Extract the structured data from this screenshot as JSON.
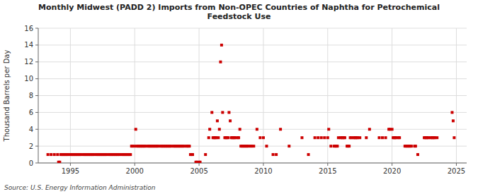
{
  "chart_data": {
    "type": "scatter",
    "title": "Monthly Midwest (PADD 2) Imports from Non-OPEC Countries of Naphtha for Petrochemical\nFeedstock Use",
    "y_label": "Thousand Barrels per Day",
    "annotations": [
      "Source: U.S. Energy Information Administration"
    ],
    "color": "#cc0000",
    "marker": "square",
    "grid": true,
    "xlim": [
      1992.5,
      2025.8
    ],
    "xticks": [
      1995,
      2000,
      2005,
      2010,
      2015,
      2020,
      2025
    ],
    "ylim": [
      0,
      16
    ],
    "yticks": [
      0,
      2,
      4,
      6,
      8,
      10,
      12,
      14,
      16
    ],
    "x": [
      1993.25,
      1993.5,
      1993.75,
      1994.0,
      1994.08,
      1994.17,
      1994.25,
      1994.33,
      1994.42,
      1994.5,
      1994.58,
      1994.67,
      1994.75,
      1994.83,
      1995.0,
      1995.08,
      1995.17,
      1995.25,
      1995.33,
      1995.42,
      1995.5,
      1995.58,
      1995.67,
      1995.75,
      1995.83,
      1996.0,
      1996.08,
      1996.17,
      1996.25,
      1996.33,
      1996.42,
      1996.5,
      1996.58,
      1996.67,
      1996.75,
      1996.83,
      1997.0,
      1997.08,
      1997.17,
      1997.25,
      1997.33,
      1997.42,
      1997.5,
      1997.58,
      1997.67,
      1997.75,
      1997.83,
      1998.0,
      1998.08,
      1998.17,
      1998.25,
      1998.33,
      1998.42,
      1998.5,
      1998.58,
      1998.67,
      1998.75,
      1998.83,
      1999.0,
      1999.08,
      1999.17,
      1999.25,
      1999.33,
      1999.42,
      1999.5,
      1999.58,
      1999.67,
      1999.75,
      1999.83,
      2000.0,
      2000.08,
      2000.17,
      2000.25,
      2000.33,
      2000.42,
      2000.5,
      2000.58,
      2000.67,
      2000.75,
      2000.83,
      2001.0,
      2001.08,
      2001.17,
      2001.25,
      2001.33,
      2001.42,
      2001.5,
      2001.58,
      2001.67,
      2001.75,
      2001.83,
      2002.0,
      2002.08,
      2002.17,
      2002.25,
      2002.33,
      2002.42,
      2002.5,
      2002.58,
      2002.67,
      2002.75,
      2002.83,
      2003.0,
      2003.08,
      2003.17,
      2003.25,
      2003.33,
      2003.42,
      2003.5,
      2003.58,
      2003.67,
      2003.75,
      2003.83,
      2004.0,
      2004.08,
      2004.17,
      2004.25,
      2004.33,
      2004.42,
      2004.5,
      2004.75,
      2004.83,
      2005.0,
      2005.08,
      2005.5,
      2005.75,
      2005.83,
      2006.0,
      2006.08,
      2006.17,
      2006.25,
      2006.33,
      2006.42,
      2006.5,
      2006.58,
      2006.67,
      2006.75,
      2006.83,
      2007.0,
      2007.08,
      2007.17,
      2007.25,
      2007.33,
      2007.42,
      2007.5,
      2007.58,
      2007.67,
      2007.75,
      2007.83,
      2008.0,
      2008.08,
      2008.17,
      2008.25,
      2008.33,
      2008.42,
      2008.5,
      2008.58,
      2008.67,
      2008.75,
      2008.83,
      2009.0,
      2009.08,
      2009.25,
      2009.5,
      2009.75,
      2010.0,
      2010.25,
      2010.75,
      2011.0,
      2011.33,
      2012.0,
      2013.0,
      2013.5,
      2014.0,
      2014.25,
      2014.5,
      2014.75,
      2015.0,
      2015.08,
      2015.25,
      2015.5,
      2015.58,
      2015.67,
      2015.75,
      2015.83,
      2016.0,
      2016.08,
      2016.17,
      2016.25,
      2016.33,
      2016.5,
      2016.58,
      2016.67,
      2016.75,
      2016.83,
      2017.0,
      2017.08,
      2017.17,
      2017.25,
      2017.33,
      2017.5,
      2018.0,
      2018.25,
      2019.0,
      2019.25,
      2019.5,
      2019.75,
      2019.83,
      2020.0,
      2020.08,
      2020.17,
      2020.25,
      2020.33,
      2020.5,
      2020.58,
      2021.0,
      2021.08,
      2021.17,
      2021.25,
      2021.33,
      2021.42,
      2021.5,
      2021.75,
      2021.83,
      2022.0,
      2022.5,
      2022.58,
      2022.67,
      2022.75,
      2022.83,
      2023.0,
      2023.08,
      2023.17,
      2023.25,
      2023.33,
      2023.5,
      2024.67,
      2024.75,
      2024.83
    ],
    "values": [
      1,
      1,
      1,
      1,
      0.1,
      0.1,
      1,
      1,
      1,
      1,
      1,
      1,
      1,
      1,
      1,
      1,
      1,
      1,
      1,
      1,
      1,
      1,
      1,
      1,
      1,
      1,
      1,
      1,
      1,
      1,
      1,
      1,
      1,
      1,
      1,
      1,
      1,
      1,
      1,
      1,
      1,
      1,
      1,
      1,
      1,
      1,
      1,
      1,
      1,
      1,
      1,
      1,
      1,
      1,
      1,
      1,
      1,
      1,
      1,
      1,
      1,
      1,
      1,
      1,
      1,
      1,
      1,
      2,
      2,
      2,
      4,
      2,
      2,
      2,
      2,
      2,
      2,
      2,
      2,
      2,
      2,
      2,
      2,
      2,
      2,
      2,
      2,
      2,
      2,
      2,
      2,
      2,
      2,
      2,
      2,
      2,
      2,
      2,
      2,
      2,
      2,
      2,
      2,
      2,
      2,
      2,
      2,
      2,
      2,
      2,
      2,
      2,
      2,
      2,
      2,
      2,
      2,
      1,
      1,
      1,
      0.1,
      0.1,
      0.1,
      0.1,
      1,
      3,
      4,
      6,
      3,
      3,
      3,
      3,
      5,
      3,
      4,
      12,
      14,
      6,
      3,
      3,
      3,
      3,
      6,
      5,
      3,
      3,
      3,
      3,
      3,
      3,
      3,
      4,
      2,
      2,
      2,
      2,
      2,
      2,
      2,
      2,
      2,
      2,
      2,
      4,
      3,
      3,
      2,
      1,
      1,
      4,
      2,
      3,
      1,
      3,
      3,
      3,
      3,
      3,
      4,
      2,
      2,
      2,
      2,
      2,
      3,
      3,
      3,
      3,
      3,
      3,
      2,
      2,
      2,
      3,
      3,
      3,
      3,
      3,
      3,
      3,
      3,
      3,
      4,
      3,
      3,
      3,
      4,
      4,
      4,
      3,
      3,
      3,
      3,
      3,
      3,
      2,
      2,
      2,
      2,
      2,
      2,
      2,
      2,
      2,
      1,
      3,
      3,
      3,
      3,
      3,
      3,
      3,
      3,
      3,
      3,
      3,
      6,
      5,
      3
    ]
  }
}
